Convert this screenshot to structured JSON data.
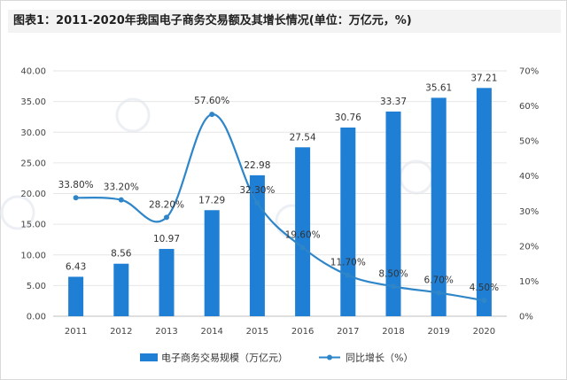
{
  "page": {
    "title": "图表1：2011-2020年我国电子商务交易额及其增长情况(单位：万亿元，%)"
  },
  "chart_data": {
    "type": "bar",
    "categories": [
      "2011",
      "2012",
      "2013",
      "2014",
      "2015",
      "2016",
      "2017",
      "2018",
      "2019",
      "2020"
    ],
    "series": [
      {
        "name": "电子商务交易规模（万亿元）",
        "type": "bar",
        "axis": "left",
        "color": "#1f7fd4",
        "values": [
          6.43,
          8.56,
          10.97,
          17.29,
          22.98,
          27.54,
          30.76,
          33.37,
          35.61,
          37.21
        ],
        "labels": [
          "6.43",
          "8.56",
          "10.97",
          "17.29",
          "22.98",
          "27.54",
          "30.76",
          "33.37",
          "35.61",
          "37.21"
        ]
      },
      {
        "name": "同比增长（%）",
        "type": "line",
        "axis": "right",
        "color": "#2e86c9",
        "values": [
          33.8,
          33.2,
          28.2,
          57.6,
          32.3,
          19.6,
          11.7,
          8.5,
          6.7,
          4.5
        ],
        "labels": [
          "33.80%",
          "33.20%",
          "28.20%",
          "57.60%",
          "32.30%",
          "19.60%",
          "11.70%",
          "8.50%",
          "6.70%",
          "4.50%"
        ]
      }
    ],
    "y_left": {
      "min": 0,
      "max": 40,
      "ticks": [
        "0.00",
        "5.00",
        "10.00",
        "15.00",
        "20.00",
        "25.00",
        "30.00",
        "35.00",
        "40.00"
      ]
    },
    "y_right": {
      "min": 0,
      "max": 70,
      "ticks": [
        "0%",
        "10%",
        "20%",
        "30%",
        "40%",
        "50%",
        "60%",
        "70%"
      ]
    },
    "grid": true,
    "legend_position": "bottom"
  }
}
